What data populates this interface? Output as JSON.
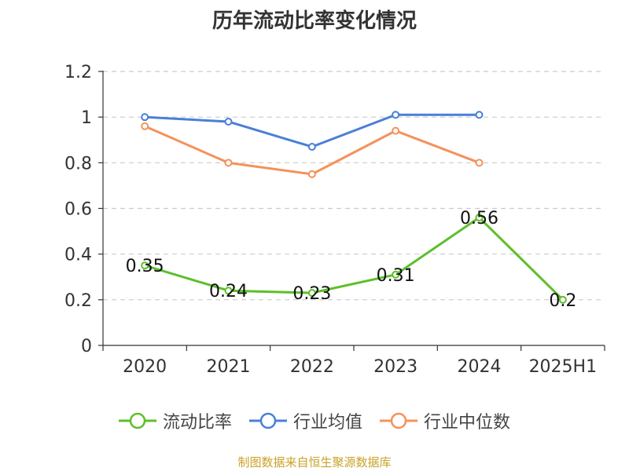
{
  "chart_data": {
    "type": "line",
    "title": "历年流动比率变化情况",
    "categories": [
      "2020",
      "2021",
      "2022",
      "2023",
      "2024",
      "2025H1"
    ],
    "ylim": [
      0,
      1.2
    ],
    "yticks": [
      "0",
      "0.2",
      "0.4",
      "0.6",
      "0.8",
      "1",
      "1.2"
    ],
    "grid": true,
    "legend_position": "bottom",
    "series": [
      {
        "name": "流动比率",
        "color": "#5dbf2a",
        "values": [
          0.35,
          0.24,
          0.23,
          0.31,
          0.56,
          0.2
        ],
        "labels": [
          "0.35",
          "0.24",
          "0.23",
          "0.31",
          "0.56",
          "0.2"
        ]
      },
      {
        "name": "行业均值",
        "color": "#4a7fd8",
        "values": [
          1.0,
          0.98,
          0.87,
          1.01,
          1.01,
          null
        ]
      },
      {
        "name": "行业中位数",
        "color": "#f4925b",
        "values": [
          0.96,
          0.8,
          0.75,
          0.94,
          0.8,
          null
        ]
      }
    ]
  },
  "footer": {
    "source": "制图数据来自恒生聚源数据库"
  }
}
